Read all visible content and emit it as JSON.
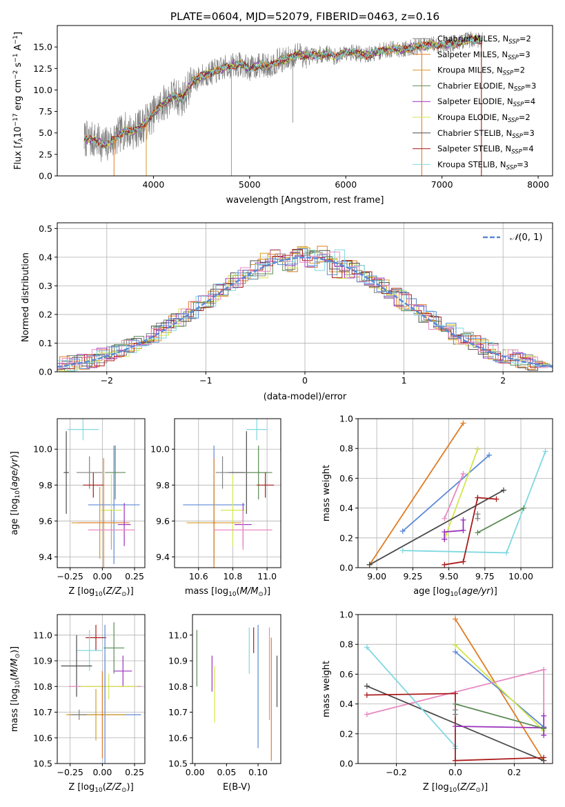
{
  "chart_data": [
    {
      "type": "line",
      "title": "PLATE=0604, MJD=52079, FIBERID=0463, z=0.16",
      "xlabel": "wavelength [Angstrom, rest frame]",
      "ylabel": "Flux [f_λ 10^-17 erg cm^-2 s^-1 A^-1]",
      "xlim": [
        3000,
        8150
      ],
      "ylim": [
        0,
        17.5
      ],
      "xticks": [
        "4000",
        "5000",
        "6000",
        "7000",
        "8000"
      ],
      "yticks": [
        "0.0",
        "2.5",
        "5.0",
        "7.5",
        "10.0",
        "12.5",
        "15.0"
      ],
      "legend_location": "upper right",
      "series": [
        {
          "name": "Chabrier MILES, N_SSP=2",
          "color": "#808080"
        },
        {
          "name": "Salpeter MILES, N_SSP=3",
          "color": "#e07b22"
        },
        {
          "name": "Kroupa MILES, N_SSP=2",
          "color": "#d79a22"
        },
        {
          "name": "Chabrier ELODIE, N_SSP=3",
          "color": "#5c8a55"
        },
        {
          "name": "Salpeter ELODIE, N_SSP=4",
          "color": "#9b2fbd"
        },
        {
          "name": "Kroupa ELODIE, N_SSP=2",
          "color": "#d4e64a"
        },
        {
          "name": "Chabrier STELIB, N_SSP=3",
          "color": "#4a4a4a"
        },
        {
          "name": "Salpeter STELIB, N_SSP=4",
          "color": "#aa1a1a"
        },
        {
          "name": "Kroupa STELIB, N_SSP=3",
          "color": "#7fd8e0"
        }
      ],
      "data_continuum": [
        [
          3280,
          4.3
        ],
        [
          3400,
          4.1
        ],
        [
          3500,
          3.6
        ],
        [
          3600,
          4.3
        ],
        [
          3700,
          5.3
        ],
        [
          3800,
          5.2
        ],
        [
          3900,
          6.0
        ],
        [
          4000,
          7.2
        ],
        [
          4100,
          8.4
        ],
        [
          4200,
          9.3
        ],
        [
          4300,
          9.0
        ],
        [
          4400,
          10.9
        ],
        [
          4500,
          11.6
        ],
        [
          4600,
          12.0
        ],
        [
          4700,
          12.4
        ],
        [
          4800,
          12.8
        ],
        [
          4900,
          13.0
        ],
        [
          5000,
          12.5
        ],
        [
          5100,
          12.9
        ],
        [
          5200,
          12.8
        ],
        [
          5300,
          13.4
        ],
        [
          5400,
          13.6
        ],
        [
          5500,
          14.2
        ],
        [
          5600,
          13.9
        ],
        [
          5700,
          14.0
        ],
        [
          5800,
          14.3
        ],
        [
          5900,
          13.8
        ],
        [
          6000,
          14.5
        ],
        [
          6100,
          14.3
        ],
        [
          6200,
          14.0
        ],
        [
          6300,
          14.3
        ],
        [
          6400,
          14.6
        ],
        [
          6500,
          14.8
        ],
        [
          6600,
          14.7
        ],
        [
          6700,
          15.0
        ],
        [
          6800,
          15.1
        ],
        [
          6900,
          15.3
        ],
        [
          7000,
          15.2
        ],
        [
          7100,
          15.4
        ],
        [
          7200,
          15.6
        ],
        [
          7300,
          15.9
        ],
        [
          7420,
          15.8
        ]
      ]
    },
    {
      "type": "histogram",
      "xlabel": "(data-model)/error",
      "ylabel": "Normed distribution",
      "xlim": [
        -2.5,
        2.5
      ],
      "ylim": [
        0,
        0.52
      ],
      "xticks": [
        "−2",
        "−1",
        "0",
        "1",
        "2"
      ],
      "yticks": [
        "0.0",
        "0.1",
        "0.2",
        "0.3",
        "0.4",
        "0.5"
      ],
      "reference": {
        "name": "N(0,1)",
        "style": "dashed",
        "color": "#5b88d6"
      },
      "legend_location": "upper right"
    },
    {
      "type": "scatter",
      "xlabel": "Z [log10(Z/Z⊙)]",
      "ylabel": "age [log10(age/yr)]",
      "xlim": [
        -0.35,
        0.33
      ],
      "ylim": [
        9.34,
        10.17
      ],
      "xticks": [
        "−0.25",
        "0.00",
        "0.25"
      ],
      "yticks": [
        "9.4",
        "9.6",
        "9.8",
        "10.0"
      ]
    },
    {
      "type": "scatter",
      "xlabel": "mass [log10(M/M⊙)]",
      "ylabel": "",
      "xlim": [
        10.46,
        11.08
      ],
      "ylim": [
        9.34,
        10.17
      ],
      "xticks": [
        "10.6",
        "10.8",
        "11.0"
      ],
      "yticks": [
        "9.4",
        "9.6",
        "9.8",
        "10.0"
      ]
    },
    {
      "type": "line",
      "xlabel": "age [log10(age/yr)]",
      "ylabel": "mass weight",
      "xlim": [
        8.87,
        10.22
      ],
      "ylim": [
        0,
        1
      ],
      "xticks": [
        "9.00",
        "9.25",
        "9.50",
        "9.75",
        "10.00"
      ],
      "yticks": [
        "0.0",
        "0.2",
        "0.4",
        "0.6",
        "0.8",
        "1.0"
      ]
    },
    {
      "type": "scatter",
      "xlabel": "Z [log10(Z/Z⊙)]",
      "ylabel": "mass [log10(M/M⊙)]",
      "xlim": [
        -0.35,
        0.33
      ],
      "ylim": [
        10.5,
        11.08
      ],
      "xticks": [
        "−0.25",
        "0.00",
        "0.25"
      ],
      "yticks": [
        "10.5",
        "10.6",
        "10.7",
        "10.8",
        "10.9",
        "11.0"
      ]
    },
    {
      "type": "scatter",
      "xlabel": "E(B-V)",
      "ylabel": "",
      "xlim": [
        -0.004,
        0.136
      ],
      "ylim": [
        10.5,
        11.08
      ],
      "xticks": [
        "0.00",
        "0.05",
        "0.10"
      ],
      "yticks": [
        "10.5",
        "10.6",
        "10.7",
        "10.8",
        "10.9",
        "11.0"
      ]
    },
    {
      "type": "line",
      "xlabel": "Z [log10(Z/Z⊙)]",
      "ylabel": "mass weight",
      "xlim": [
        -0.33,
        0.33
      ],
      "ylim": [
        0,
        1
      ],
      "xticks": [
        "−0.2",
        "0.0",
        "0.2"
      ],
      "yticks": [
        "0.0",
        "0.2",
        "0.4",
        "0.6",
        "0.8",
        "1.0"
      ]
    }
  ],
  "models": [
    {
      "name": "Chabrier MILES",
      "color": "#808080"
    },
    {
      "name": "Salpeter MILES",
      "color": "#e07b22"
    },
    {
      "name": "Kroupa MILES",
      "color": "#d79a22"
    },
    {
      "name": "Chabrier ELODIE",
      "color": "#5c8a55"
    },
    {
      "name": "Salpeter ELODIE",
      "color": "#9b2fbd"
    },
    {
      "name": "Kroupa ELODIE",
      "color": "#d4e64a"
    },
    {
      "name": "Chabrier STELIB",
      "color": "#4a4a4a"
    },
    {
      "name": "Salpeter STELIB",
      "color": "#aa1a1a"
    },
    {
      "name": "Kroupa STELIB",
      "color": "#7fd8e0"
    },
    {
      "name": "blue",
      "color": "#5b88d6"
    },
    {
      "name": "pink",
      "color": "#e887c0"
    }
  ],
  "errorbars_age_Z": [
    {
      "c": "#7fd8e0",
      "x": -0.15,
      "dx": 0.12,
      "y": 10.11,
      "dy": 0.06
    },
    {
      "c": "#5b88d6",
      "x": 0.09,
      "dx": 0.2,
      "y": 9.69,
      "dy": 0.33
    },
    {
      "c": "#4a4a4a",
      "x": -0.28,
      "dx": 0.02,
      "y": 9.87,
      "dy": 0.23
    },
    {
      "c": "#808080",
      "x": -0.1,
      "dx": 0.1,
      "y": 9.87,
      "dy": 0.09
    },
    {
      "c": "#5c8a55",
      "x": 0.1,
      "dx": 0.08,
      "y": 9.87,
      "dy": 0.15
    },
    {
      "c": "#aa1a1a",
      "x": -0.07,
      "dx": 0.08,
      "y": 9.8,
      "dy": 0.07
    },
    {
      "c": "#d4e64a",
      "x": 0.07,
      "dx": 0.08,
      "y": 9.66,
      "dy": 0.2
    },
    {
      "c": "#d79a22",
      "x": -0.02,
      "dx": 0.22,
      "y": 9.59,
      "dy": 0.2
    },
    {
      "c": "#e07b22",
      "x": 0.01,
      "dx": 0.2,
      "y": 9.59,
      "dy": 0.36
    },
    {
      "c": "#9b2fbd",
      "x": 0.17,
      "dx": 0.05,
      "y": 9.58,
      "dy": 0.12
    },
    {
      "c": "#e887c0",
      "x": 0.07,
      "dx": 0.18,
      "y": 9.55,
      "dy": 0.11
    }
  ],
  "errorbars_age_mass": [
    {
      "c": "#7fd8e0",
      "x": 10.94,
      "dx": 0.06,
      "y": 10.11,
      "dy": 0.06
    },
    {
      "c": "#5b88d6",
      "x": 10.69,
      "dx": 0.18,
      "y": 9.69,
      "dy": 0.33
    },
    {
      "c": "#4a4a4a",
      "x": 10.88,
      "dx": 0.12,
      "y": 9.87,
      "dy": 0.23
    },
    {
      "c": "#808080",
      "x": 10.74,
      "dx": 0.04,
      "y": 9.87,
      "dy": 0.09
    },
    {
      "c": "#5c8a55",
      "x": 10.95,
      "dx": 0.08,
      "y": 9.87,
      "dy": 0.15
    },
    {
      "c": "#aa1a1a",
      "x": 10.99,
      "dx": 0.05,
      "y": 9.8,
      "dy": 0.07
    },
    {
      "c": "#d4e64a",
      "x": 10.8,
      "dx": 0.07,
      "y": 9.66,
      "dy": 0.2
    },
    {
      "c": "#d79a22",
      "x": 10.69,
      "dx": 0.16,
      "y": 9.59,
      "dy": 0.2
    },
    {
      "c": "#e07b22",
      "x": 10.69,
      "dx": 0.01,
      "y": 9.59,
      "dy": 0.36
    },
    {
      "c": "#9b2fbd",
      "x": 10.86,
      "dx": 0.05,
      "y": 9.58,
      "dy": 0.12
    },
    {
      "c": "#e887c0",
      "x": 10.86,
      "dx": 0.17,
      "y": 9.55,
      "dy": 0.11
    }
  ],
  "weights_age": [
    {
      "c": "#e07b22",
      "pts": [
        [
          8.95,
          0.02
        ],
        [
          9.6,
          0.97
        ]
      ]
    },
    {
      "c": "#5b88d6",
      "pts": [
        [
          9.18,
          0.245
        ],
        [
          9.78,
          0.755
        ]
      ]
    },
    {
      "c": "#d4e64a",
      "pts": [
        [
          9.48,
          0.22
        ],
        [
          9.7,
          0.795
        ]
      ]
    },
    {
      "c": "#e887c0",
      "pts": [
        [
          9.47,
          0.33
        ],
        [
          9.6,
          0.63
        ]
      ]
    },
    {
      "c": "#4a4a4a",
      "pts": [
        [
          8.95,
          0.02
        ],
        [
          9.88,
          0.52
        ]
      ]
    },
    {
      "c": "#7fd8e0",
      "pts": [
        [
          9.18,
          0.115
        ],
        [
          9.9,
          0.1
        ],
        [
          10.17,
          0.78
        ]
      ]
    },
    {
      "c": "#aa1a1a",
      "pts": [
        [
          9.47,
          0.02
        ],
        [
          9.6,
          0.04
        ],
        [
          9.7,
          0.47
        ],
        [
          9.83,
          0.46
        ]
      ]
    },
    {
      "c": "#9b2fbd",
      "pts": [
        [
          9.47,
          0.19
        ],
        [
          9.47,
          0.24
        ],
        [
          9.6,
          0.25
        ],
        [
          9.6,
          0.32
        ]
      ]
    },
    {
      "c": "#5c8a55",
      "pts": [
        [
          9.7,
          0.235
        ],
        [
          10.02,
          0.4
        ]
      ]
    },
    {
      "c": "#808080",
      "pts": [
        [
          9.7,
          0.36
        ],
        [
          9.7,
          0.33
        ]
      ]
    }
  ],
  "errorbars_mass_Z": [
    {
      "c": "#aa1a1a",
      "x": -0.05,
      "dx": 0.08,
      "y": 10.99,
      "dy": 0.05
    },
    {
      "c": "#7fd8e0",
      "x": -0.1,
      "dx": 0.1,
      "y": 10.94,
      "dy": 0.08
    },
    {
      "c": "#5c8a55",
      "x": 0.09,
      "dx": 0.08,
      "y": 10.95,
      "dy": 0.1
    },
    {
      "c": "#4a4a4a",
      "x": -0.2,
      "dx": 0.12,
      "y": 10.88,
      "dy": 0.12
    },
    {
      "c": "#9b2fbd",
      "x": 0.16,
      "dx": 0.07,
      "y": 10.86,
      "dy": 0.06
    },
    {
      "c": "#e887c0",
      "x": 0.02,
      "dx": 0.28,
      "y": 10.8,
      "dy": 0.12
    },
    {
      "c": "#d4e64a",
      "x": 0.05,
      "dx": 0.22,
      "y": 10.8,
      "dy": 0.05
    },
    {
      "c": "#5b88d6",
      "x": 0.02,
      "dx": 0.28,
      "y": 10.69,
      "dy": 0.35
    },
    {
      "c": "#d79a22",
      "x": -0.05,
      "dx": 0.23,
      "y": 10.69,
      "dy": 0.1
    },
    {
      "c": "#e07b22",
      "x": 0.0,
      "dx": 0.01,
      "y": 10.69,
      "dy": 0.17
    },
    {
      "c": "#808080",
      "x": -0.18,
      "dx": 0.06,
      "y": 10.69,
      "dy": 0.02
    }
  ],
  "errorbars_mass_ebv": [
    {
      "c": "#5c8a55",
      "x": 0.003,
      "dy": 0.11,
      "y": 10.91
    },
    {
      "c": "#9b2fbd",
      "x": 0.027,
      "dy": 0.07,
      "y": 10.85
    },
    {
      "c": "#d4e64a",
      "x": 0.031,
      "dy": 0.11,
      "y": 10.77
    },
    {
      "c": "#7fd8e0",
      "x": 0.086,
      "dy": 0.09,
      "y": 10.94
    },
    {
      "c": "#aa1a1a",
      "x": 0.093,
      "dy": 0.05,
      "y": 10.98
    },
    {
      "c": "#5b88d6",
      "x": 0.1,
      "dy": 0.24,
      "y": 10.8
    },
    {
      "c": "#e887c0",
      "x": 0.118,
      "dy": 0.18,
      "y": 10.85
    },
    {
      "c": "#e07b22",
      "x": 0.121,
      "dy": 0.24,
      "y": 10.75
    },
    {
      "c": "#4a4a4a",
      "x": 0.13,
      "dy": 0.1,
      "y": 10.82
    }
  ],
  "weights_Z": [
    {
      "c": "#e07b22",
      "pts": [
        [
          0.0,
          0.97
        ],
        [
          0.3,
          0.02
        ]
      ]
    },
    {
      "c": "#5b88d6",
      "pts": [
        [
          0.0,
          0.75
        ],
        [
          0.3,
          0.245
        ]
      ]
    },
    {
      "c": "#d4e64a",
      "pts": [
        [
          0.0,
          0.795
        ],
        [
          0.3,
          0.22
        ]
      ]
    },
    {
      "c": "#e887c0",
      "pts": [
        [
          -0.3,
          0.33
        ],
        [
          0.3,
          0.63
        ],
        [
          0.3,
          0.32
        ]
      ]
    },
    {
      "c": "#4a4a4a",
      "pts": [
        [
          -0.3,
          0.52
        ],
        [
          0.3,
          0.02
        ]
      ]
    },
    {
      "c": "#7fd8e0",
      "pts": [
        [
          -0.3,
          0.78
        ],
        [
          0.0,
          0.115
        ],
        [
          0.0,
          0.1
        ]
      ]
    },
    {
      "c": "#aa1a1a",
      "pts": [
        [
          -0.3,
          0.46
        ],
        [
          0.0,
          0.47
        ],
        [
          0.0,
          0.02
        ],
        [
          0.3,
          0.04
        ]
      ]
    },
    {
      "c": "#9b2fbd",
      "pts": [
        [
          0.0,
          0.25
        ],
        [
          0.3,
          0.24
        ],
        [
          0.3,
          0.32
        ],
        [
          0.3,
          0.19
        ]
      ]
    },
    {
      "c": "#5c8a55",
      "pts": [
        [
          0.0,
          0.4
        ],
        [
          0.3,
          0.235
        ]
      ]
    },
    {
      "c": "#808080",
      "pts": [
        [
          0.0,
          0.36
        ],
        [
          0.0,
          0.33
        ]
      ]
    }
  ]
}
